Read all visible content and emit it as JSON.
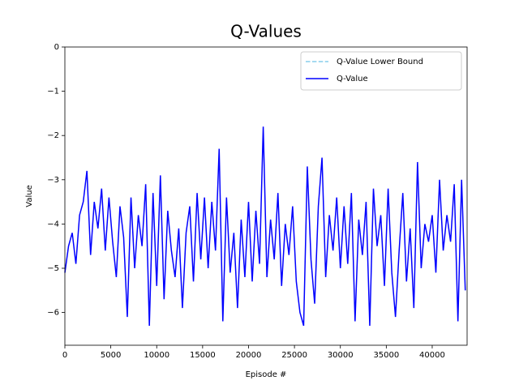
{
  "chart_data": {
    "type": "line",
    "title": "Q-Values",
    "x_label": "Episode #",
    "y_label": "Value",
    "xlim": [
      0,
      43800
    ],
    "ylim": [
      -6.74,
      0
    ],
    "xticks": [
      0,
      5000,
      10000,
      15000,
      20000,
      25000,
      30000,
      35000,
      40000
    ],
    "yticks": [
      0,
      {
        "value": -1,
        "label": "−1"
      },
      {
        "value": -2,
        "label": "−2"
      },
      {
        "value": -3,
        "label": "−3"
      },
      {
        "value": -4,
        "label": "−4"
      },
      {
        "value": -5,
        "label": "−5"
      },
      {
        "value": -6,
        "label": "−6"
      }
    ],
    "legend": "upper right",
    "grid": false,
    "x": [
      0,
      400,
      800,
      1200,
      1600,
      2000,
      2400,
      2800,
      3200,
      3600,
      4000,
      4400,
      4800,
      5200,
      5600,
      6000,
      6400,
      6800,
      7200,
      7600,
      8000,
      8400,
      8800,
      9200,
      9600,
      10000,
      10400,
      10800,
      11200,
      11600,
      12000,
      12400,
      12800,
      13200,
      13600,
      14000,
      14400,
      14800,
      15200,
      15600,
      16000,
      16400,
      16800,
      17200,
      17600,
      18000,
      18400,
      18800,
      19200,
      19600,
      20000,
      20400,
      20800,
      21200,
      21600,
      22000,
      22400,
      22800,
      23200,
      23600,
      24000,
      24400,
      24800,
      25200,
      25600,
      26000,
      26400,
      26800,
      27200,
      27600,
      28000,
      28400,
      28800,
      29200,
      29600,
      30000,
      30400,
      30800,
      31200,
      31600,
      32000,
      32400,
      32800,
      33200,
      33600,
      34000,
      34400,
      34800,
      35200,
      35600,
      36000,
      36400,
      36800,
      37200,
      37600,
      38000,
      38400,
      38800,
      39200,
      39600,
      40000,
      40400,
      40800,
      41200,
      41600,
      42000,
      42400,
      42800,
      43200,
      43600
    ],
    "series": [
      {
        "name": "Q-Value Lower Bound",
        "color": "#87ceeb",
        "dashed": true,
        "values": [
          null,
          null,
          null,
          null,
          null,
          null,
          null,
          null,
          null,
          null,
          null,
          null,
          null,
          null,
          null,
          null,
          null,
          null,
          null,
          null,
          null,
          null,
          null,
          null,
          null,
          null,
          null,
          null,
          null,
          null,
          null,
          null,
          null,
          null,
          null,
          null,
          null,
          null,
          null,
          null,
          null,
          null,
          null,
          null,
          null,
          null,
          null,
          null,
          null,
          null,
          null,
          null,
          null,
          null,
          null,
          null,
          null,
          null,
          null,
          null,
          null,
          null,
          null,
          null,
          null,
          null,
          null,
          null,
          null,
          null,
          null,
          null,
          null,
          null,
          null,
          null,
          null,
          null,
          null,
          null,
          null,
          null,
          null,
          null,
          null,
          null,
          null,
          null,
          null,
          null,
          null,
          null,
          null,
          null,
          null,
          null,
          null,
          null,
          null,
          null,
          null,
          null,
          null,
          null,
          null,
          null,
          null,
          null,
          null,
          null
        ]
      },
      {
        "name": "Q-Value",
        "color": "#0000ff",
        "dashed": false,
        "values": [
          -5.1,
          -4.5,
          -4.2,
          -4.9,
          -3.8,
          -3.5,
          -2.8,
          -4.7,
          -3.5,
          -4.1,
          -3.2,
          -4.6,
          -3.4,
          -4.4,
          -5.2,
          -3.6,
          -4.3,
          -6.1,
          -3.4,
          -5.0,
          -3.8,
          -4.5,
          -3.1,
          -6.3,
          -3.3,
          -5.4,
          -2.9,
          -5.7,
          -3.7,
          -4.6,
          -5.2,
          -4.1,
          -5.9,
          -4.2,
          -3.6,
          -5.3,
          -3.3,
          -4.8,
          -3.4,
          -5.0,
          -3.5,
          -4.6,
          -2.3,
          -6.2,
          -3.4,
          -5.1,
          -4.2,
          -5.9,
          -3.9,
          -5.2,
          -3.5,
          -5.3,
          -3.7,
          -4.9,
          -1.8,
          -5.2,
          -3.9,
          -4.8,
          -3.3,
          -5.4,
          -4.0,
          -4.7,
          -3.6,
          -5.3,
          -6.0,
          -6.3,
          -2.7,
          -4.8,
          -5.8,
          -3.6,
          -2.5,
          -5.2,
          -3.8,
          -4.6,
          -3.4,
          -5.0,
          -3.6,
          -4.9,
          -3.3,
          -6.2,
          -3.9,
          -4.7,
          -3.5,
          -6.3,
          -3.2,
          -4.5,
          -3.8,
          -5.4,
          -3.2,
          -5.1,
          -6.1,
          -4.6,
          -3.3,
          -5.3,
          -4.1,
          -5.9,
          -2.6,
          -5.0,
          -4.0,
          -4.4,
          -3.8,
          -5.1,
          -3.0,
          -4.6,
          -3.8,
          -4.4,
          -3.1,
          -6.2,
          -3.0,
          -5.5
        ]
      }
    ]
  }
}
